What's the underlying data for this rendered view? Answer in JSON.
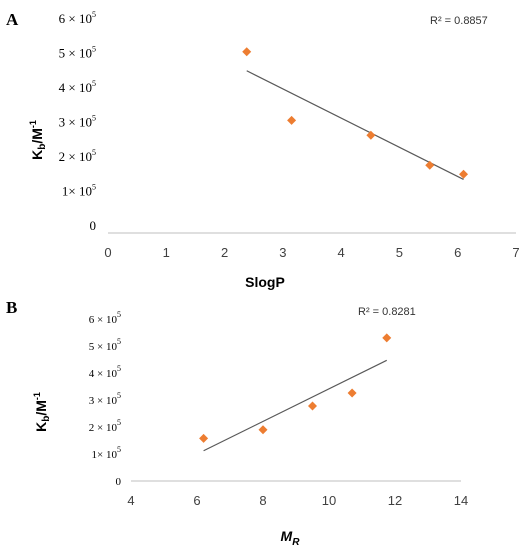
{
  "chart_data": [
    {
      "type": "scatter",
      "panel_label": "A",
      "xlabel": "SlogP",
      "ylabel": {
        "base": "K",
        "sub": "b",
        "tail": "/M",
        "sup": "-1"
      },
      "xlim": [
        0,
        7
      ],
      "ylim": [
        0,
        600000
      ],
      "x_ticks": [
        "0",
        "1",
        "2",
        "3",
        "4",
        "5",
        "6",
        "7"
      ],
      "y_ticks": [
        {
          "value": 0,
          "label": "0"
        },
        {
          "value": 100000,
          "label": "1× 10",
          "exp": "5"
        },
        {
          "value": 200000,
          "label": "2 × 10",
          "exp": "5"
        },
        {
          "value": 300000,
          "label": "3 × 10",
          "exp": "5"
        },
        {
          "value": 400000,
          "label": "4 × 10",
          "exp": "5"
        },
        {
          "value": 500000,
          "label": "5 × 10",
          "exp": "5"
        },
        {
          "value": 600000,
          "label": "6 × 10",
          "exp": "5"
        }
      ],
      "x": [
        2.38,
        3.15,
        4.51,
        5.52,
        6.1
      ],
      "y": [
        505000,
        306000,
        263000,
        176000,
        150000
      ],
      "color": "#ed7d31",
      "trendline": {
        "x": [
          2.38,
          6.1
        ],
        "y": [
          450000,
          135000
        ]
      },
      "r_squared": "R² = 0.8857",
      "grid": false
    },
    {
      "type": "scatter",
      "panel_label": "B",
      "xlabel": {
        "base": "M",
        "sub": "R"
      },
      "ylabel": {
        "base": "K",
        "sub": "b",
        "tail": "/M",
        "sup": "-1"
      },
      "xlim": [
        4,
        14
      ],
      "ylim": [
        0,
        600000
      ],
      "x_ticks": [
        "4",
        "6",
        "8",
        "10",
        "12",
        "14"
      ],
      "y_ticks": [
        {
          "value": 0,
          "label": "0"
        },
        {
          "value": 100000,
          "label": "1× 10",
          "exp": "5"
        },
        {
          "value": 200000,
          "label": "2 × 10",
          "exp": "5"
        },
        {
          "value": 300000,
          "label": "3 × 10",
          "exp": "5"
        },
        {
          "value": 400000,
          "label": "4 × 10",
          "exp": "5"
        },
        {
          "value": 500000,
          "label": "5 × 10",
          "exp": "5"
        },
        {
          "value": 600000,
          "label": "6 × 10",
          "exp": "5"
        }
      ],
      "x": [
        6.2,
        8.0,
        9.5,
        10.7,
        11.75
      ],
      "y": [
        158000,
        190000,
        278000,
        326000,
        530000
      ],
      "color": "#ed7d31",
      "trendline": {
        "x": [
          6.2,
          11.75
        ],
        "y": [
          112000,
          447000
        ]
      },
      "r_squared": "R² = 0.8281",
      "grid": false
    }
  ]
}
